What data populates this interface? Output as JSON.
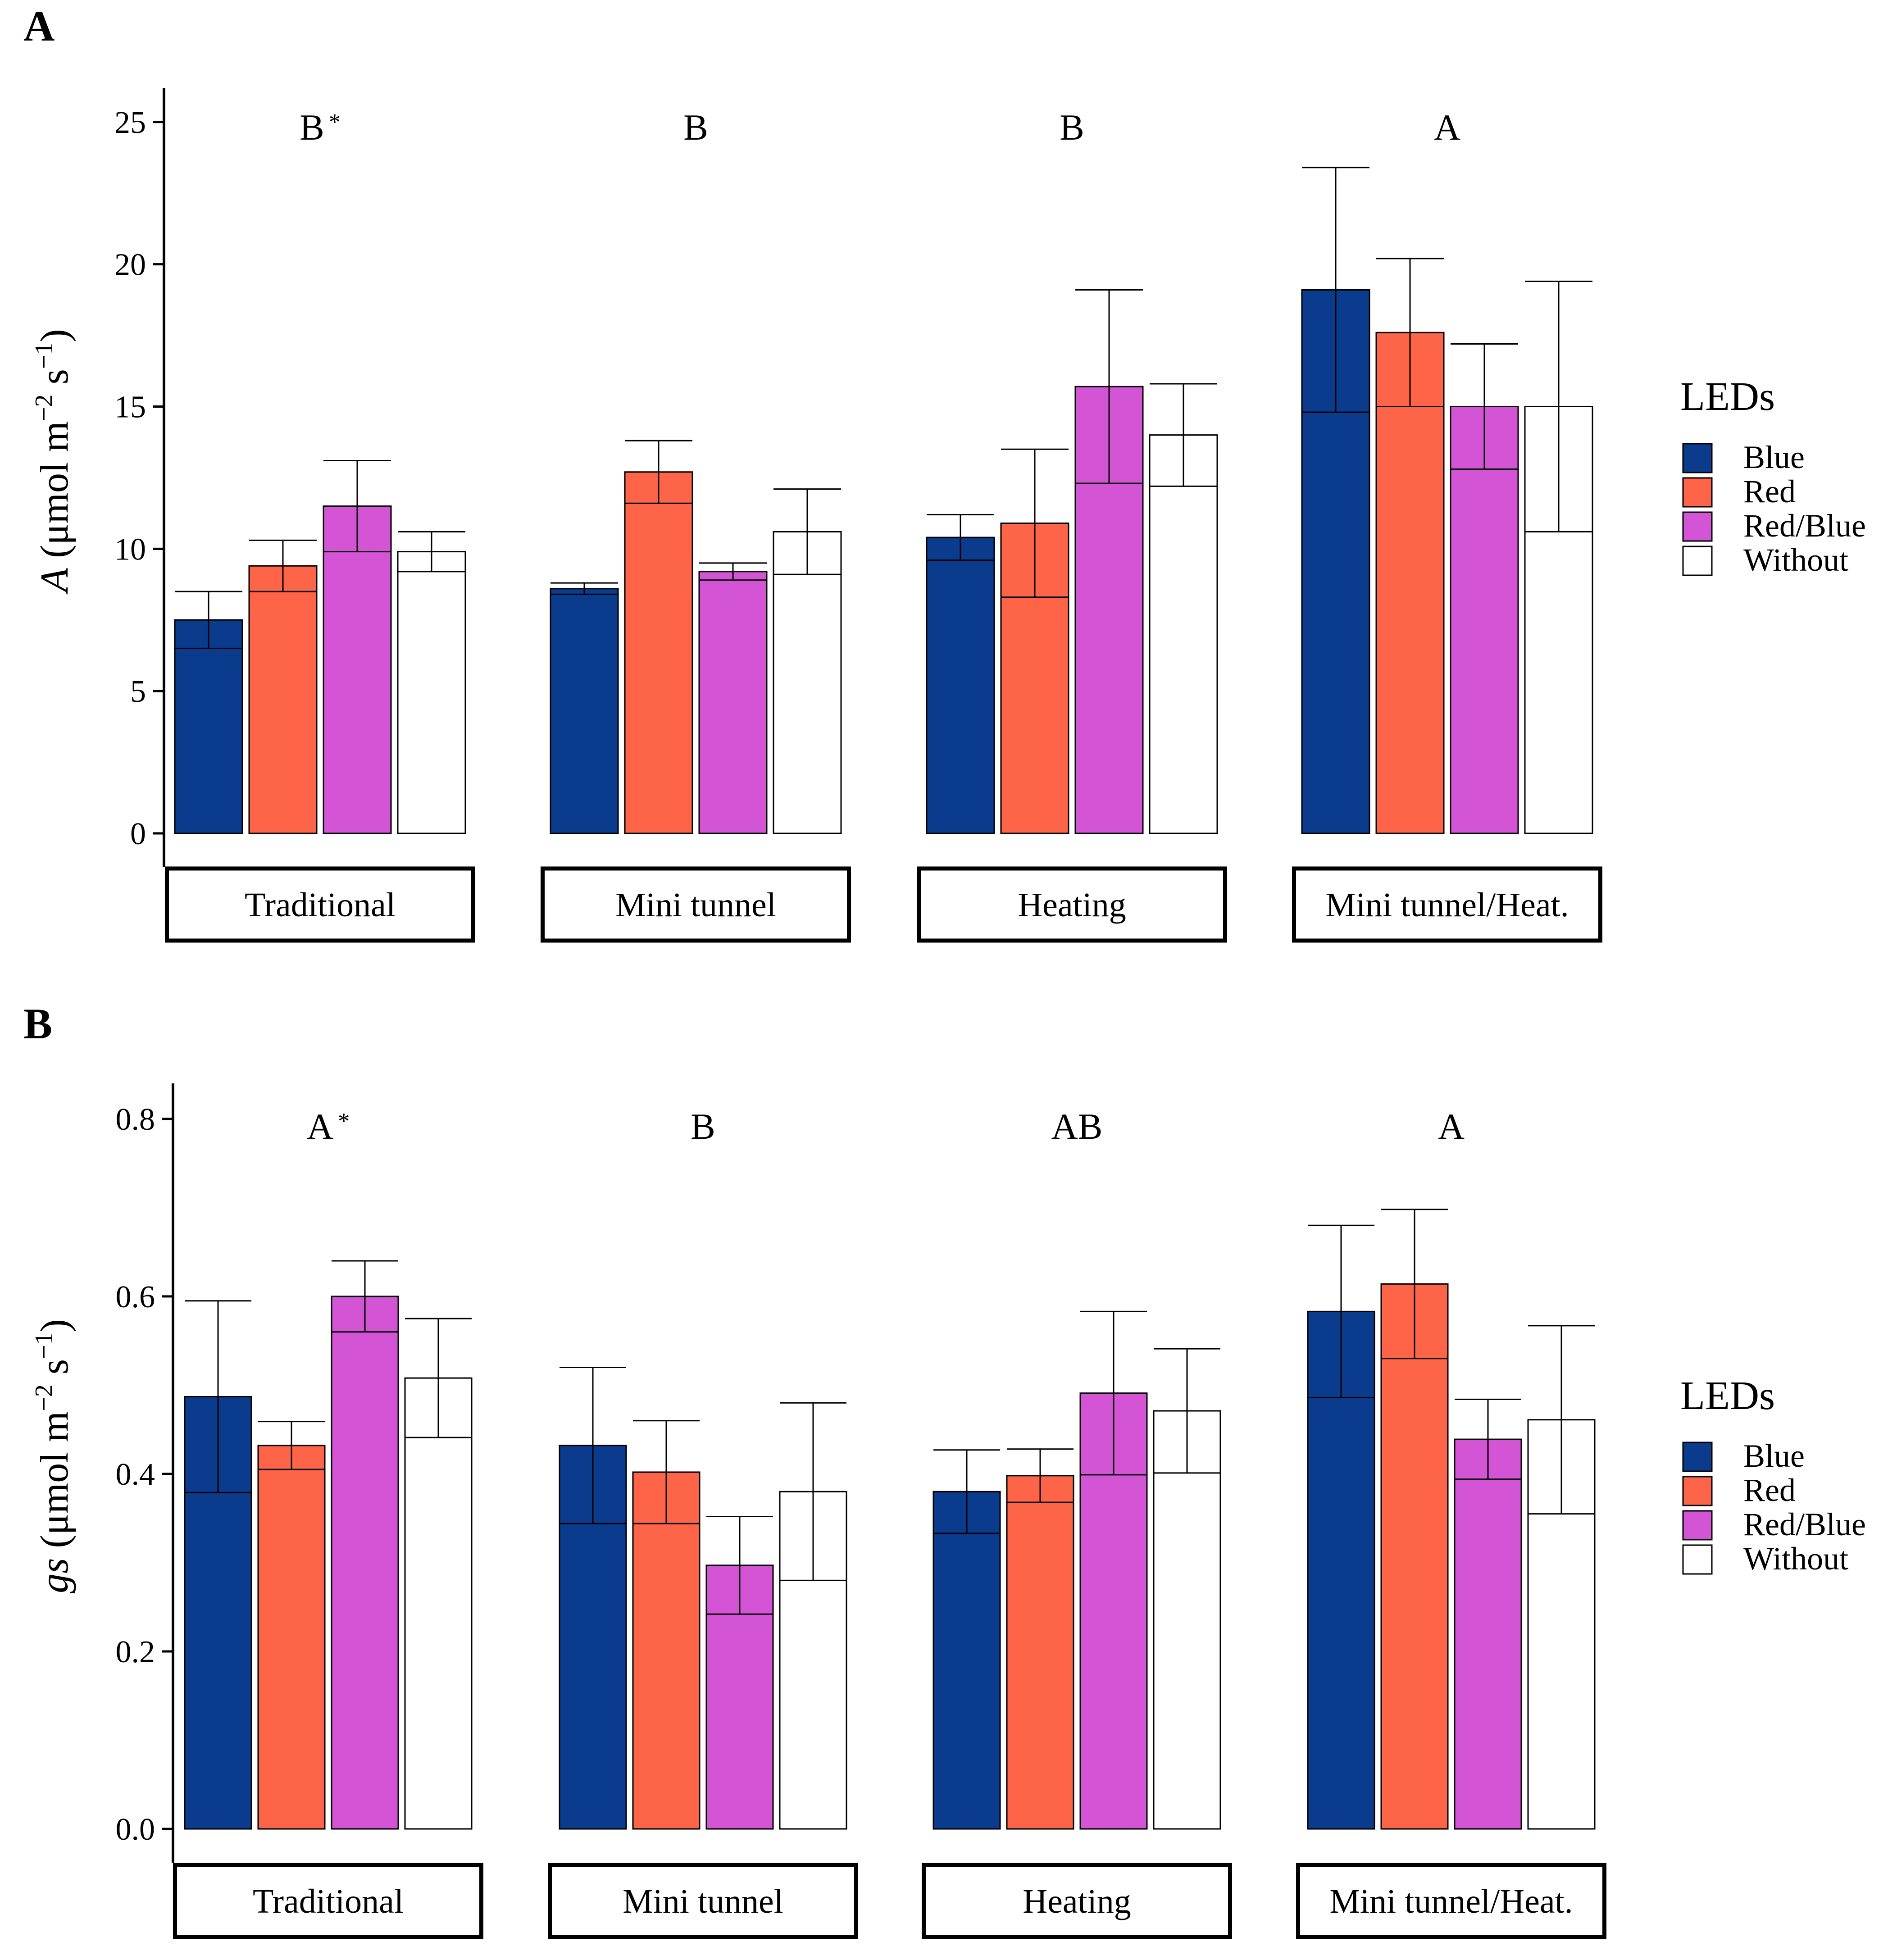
{
  "colors": {
    "Blue": "#0b3b8c",
    "Red": "#fe6448",
    "Red/Blue": "#d355d6",
    "Without": "#ffffff"
  },
  "chart_data": [
    {
      "type": "bar",
      "panel": "A",
      "ylabel_symbol": "A",
      "ylabel_unit": "(μmol m",
      "ylabel_exp1": "−2",
      "ylabel_mid": " s",
      "ylabel_exp2": "−1",
      "ylabel_close": ")",
      "ylim": [
        0,
        26.2
      ],
      "yticks": [
        0,
        5,
        10,
        15,
        20,
        25
      ],
      "ytick_labels": [
        "0",
        "5",
        "10",
        "15",
        "20",
        "25"
      ],
      "series_names": [
        "Blue",
        "Red",
        "Red/Blue",
        "Without"
      ],
      "groups": [
        {
          "label": "Traditional",
          "sig": "B",
          "star": "*",
          "means": [
            7.5,
            9.4,
            11.5,
            9.9
          ],
          "errors": [
            1.0,
            0.9,
            1.6,
            0.7
          ]
        },
        {
          "label": "Mini tunnel",
          "sig": "B",
          "star": "",
          "means": [
            8.6,
            12.7,
            9.2,
            10.6
          ],
          "errors": [
            0.2,
            1.1,
            0.3,
            1.5
          ]
        },
        {
          "label": "Heating",
          "sig": "B",
          "star": "",
          "means": [
            10.4,
            10.9,
            15.7,
            14.0
          ],
          "errors": [
            0.8,
            2.6,
            3.4,
            1.8
          ]
        },
        {
          "label": "Mini tunnel/Heat.",
          "sig": "A",
          "star": "",
          "means": [
            19.1,
            17.6,
            15.0,
            15.0
          ],
          "errors": [
            4.3,
            2.6,
            2.2,
            4.4
          ]
        }
      ],
      "legend_title": "LEDs",
      "legend_labels": [
        "Blue",
        "Red",
        "Red/Blue",
        "Without"
      ]
    },
    {
      "type": "bar",
      "panel": "B",
      "ylabel_symbol": "gs",
      "ylabel_unit": "(μmol m",
      "ylabel_exp1": "−2",
      "ylabel_mid": " s",
      "ylabel_exp2": "−1",
      "ylabel_close": ")",
      "ylim": [
        0,
        0.84
      ],
      "yticks": [
        0.0,
        0.2,
        0.4,
        0.6,
        0.8
      ],
      "ytick_labels": [
        "0.0",
        "0.2",
        "0.4",
        "0.6",
        "0.8"
      ],
      "series_names": [
        "Blue",
        "Red",
        "Red/Blue",
        "Without"
      ],
      "groups": [
        {
          "label": "Traditional",
          "sig": "A",
          "star": "*",
          "means": [
            0.487,
            0.432,
            0.6,
            0.508
          ],
          "errors": [
            0.108,
            0.027,
            0.04,
            0.067
          ]
        },
        {
          "label": "Mini tunnel",
          "sig": "B",
          "star": "",
          "means": [
            0.432,
            0.402,
            0.297,
            0.38
          ],
          "errors": [
            0.088,
            0.058,
            0.055,
            0.1
          ]
        },
        {
          "label": "Heating",
          "sig": "AB",
          "star": "",
          "means": [
            0.38,
            0.398,
            0.491,
            0.471
          ],
          "errors": [
            0.047,
            0.03,
            0.092,
            0.07
          ]
        },
        {
          "label": "Mini tunnel/Heat.",
          "sig": "A",
          "star": "",
          "means": [
            0.583,
            0.614,
            0.439,
            0.461
          ],
          "errors": [
            0.097,
            0.084,
            0.045,
            0.106
          ]
        }
      ],
      "legend_title": "LEDs",
      "legend_labels": [
        "Blue",
        "Red",
        "Red/Blue",
        "Without"
      ]
    }
  ]
}
